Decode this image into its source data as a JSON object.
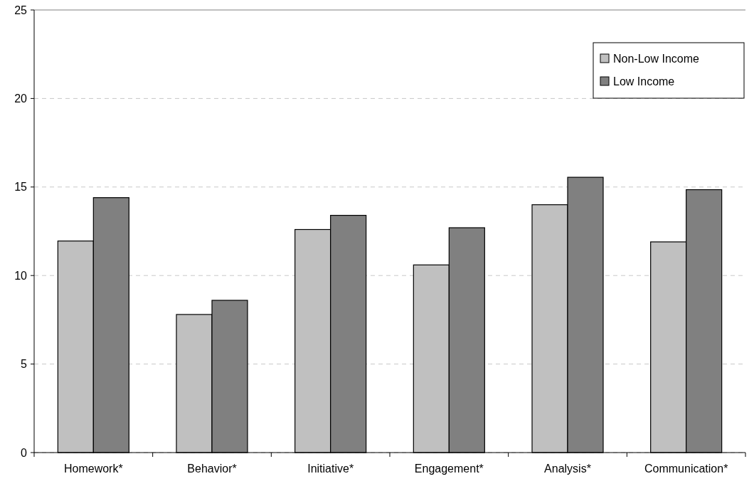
{
  "chart_data": {
    "type": "bar",
    "categories": [
      "Homework*",
      "Behavior*",
      "Initiative*",
      "Engagement*",
      "Analysis*",
      "Communication*"
    ],
    "series": [
      {
        "name": "Non-Low Income",
        "color": "#c0c0c0",
        "values": [
          11.95,
          7.8,
          12.6,
          10.6,
          14.0,
          11.9
        ]
      },
      {
        "name": "Low Income",
        "color": "#808080",
        "values": [
          14.4,
          8.6,
          13.4,
          12.7,
          15.55,
          14.85
        ]
      }
    ],
    "ylim": [
      0,
      25
    ],
    "yticks": [
      0,
      5,
      10,
      15,
      20,
      25
    ],
    "grid": "y",
    "legend": "top right"
  }
}
